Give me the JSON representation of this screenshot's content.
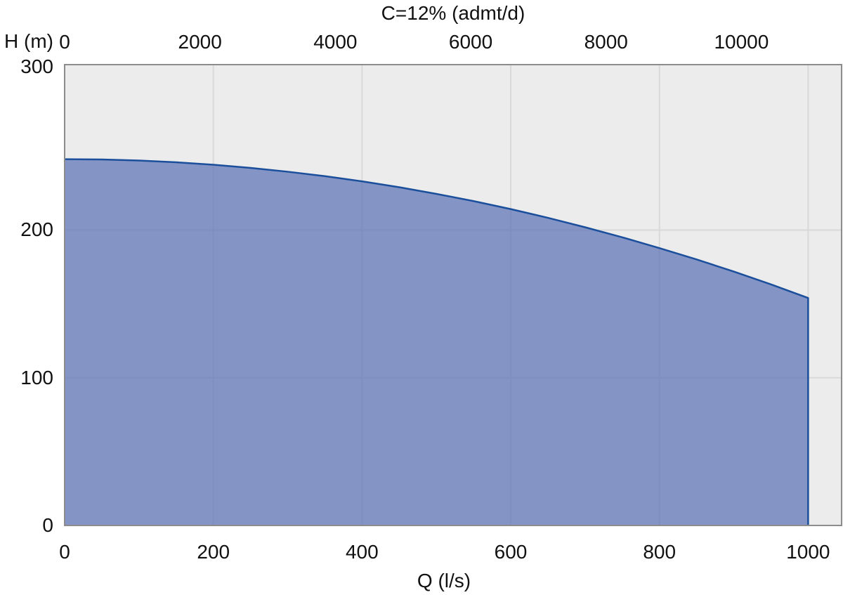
{
  "labels": {
    "title": "C=12% (admt/d)",
    "y_axis": "H (m)",
    "x_axis": "Q (l/s)"
  },
  "colors": {
    "page_background": "#FFFFFF",
    "plot_background": "#ECECEC",
    "gridline": "#D9D9D9",
    "plot_border": "#8C8C8C",
    "envelope_fill": "#5A72B6",
    "envelope_fill_opacity": 0.72,
    "envelope_line": "#1B4F9C",
    "text": "#111111"
  },
  "chart_data": {
    "type": "area",
    "title": "C=12% (admt/d)",
    "xlabel": "Q (l/s)",
    "ylabel": "H (m)",
    "x_axis_bottom": {
      "label": "Q (l/s)",
      "unit": "l/s",
      "ticks": [
        0,
        200,
        400,
        600,
        800,
        1000
      ],
      "range": [
        0,
        1045
      ]
    },
    "x_axis_top": {
      "label": "C=12% (admt/d)",
      "unit": "admt/d",
      "ticks": [
        0,
        2000,
        4000,
        6000,
        8000,
        10000
      ],
      "range": [
        0,
        11480
      ]
    },
    "y_axis_left": {
      "label": "H (m)",
      "unit": "m",
      "ticks": [
        0,
        100,
        200,
        300
      ],
      "range": [
        0,
        312
      ]
    },
    "grid": {
      "vertical_gridlines_at_bottom_ticks": [
        200,
        400,
        600,
        800,
        1000
      ],
      "horizontal_gridlines_at_left_ticks": [
        100,
        200
      ]
    },
    "series": [
      {
        "name": "pump-operating-envelope",
        "style": "filled-area-with-line",
        "h_at_q0": 248,
        "h_at_qmax": 154,
        "max_q": 1000,
        "points_q_h": [
          [
            0,
            248
          ],
          [
            50,
            247.8
          ],
          [
            100,
            247.1
          ],
          [
            150,
            245.9
          ],
          [
            200,
            244.2
          ],
          [
            250,
            242.1
          ],
          [
            300,
            239.5
          ],
          [
            350,
            236.5
          ],
          [
            400,
            233.0
          ],
          [
            450,
            229.0
          ],
          [
            500,
            224.5
          ],
          [
            550,
            219.6
          ],
          [
            600,
            214.2
          ],
          [
            650,
            208.3
          ],
          [
            700,
            201.9
          ],
          [
            750,
            195.1
          ],
          [
            800,
            187.8
          ],
          [
            850,
            180.1
          ],
          [
            900,
            171.9
          ],
          [
            950,
            163.2
          ],
          [
            1000,
            154
          ]
        ],
        "closes_vertically_to_zero_at_q": 1000
      }
    ]
  }
}
